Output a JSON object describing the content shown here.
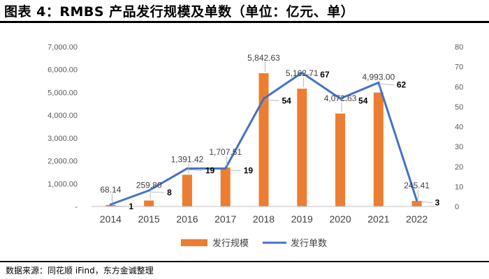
{
  "title": "图表 4：RMBS 产品发行规模及单数（单位：亿元、单）",
  "source": "数据来源：同花顺 iFind，东方金诚整理",
  "colors": {
    "bar": "#ED7D31",
    "line": "#4472C4"
  },
  "chart_data": {
    "type": "bar+line",
    "categories": [
      "2014",
      "2015",
      "2016",
      "2017",
      "2018",
      "2019",
      "2020",
      "2021",
      "2022"
    ],
    "series": [
      {
        "name": "发行规模",
        "type": "bar",
        "axis": "left",
        "values": [
          68.14,
          259.8,
          1391.42,
          1707.51,
          5842.63,
          5162.71,
          4072.63,
          4993.0,
          245.41
        ],
        "labels": [
          "68.14",
          "259.80",
          "1,391.42",
          "1,707.51",
          "5,842.63",
          "5,162.71",
          "4,072.63",
          "4,993.00",
          "245.41"
        ]
      },
      {
        "name": "发行单数",
        "type": "line",
        "axis": "right",
        "values": [
          1,
          8,
          19,
          19,
          54,
          67,
          54,
          62,
          3
        ],
        "labels": [
          "1",
          "8",
          "19",
          "19",
          "54",
          "67",
          "54",
          "62",
          "3"
        ]
      }
    ],
    "y_left": {
      "range": [
        0,
        7000
      ],
      "ticks": [
        0,
        1000,
        2000,
        3000,
        4000,
        5000,
        6000,
        7000
      ],
      "tick_labels": [
        "-",
        "1,000.00",
        "2,000.00",
        "3,000.00",
        "4,000.00",
        "5,000.00",
        "6,000.00",
        "7,000.00"
      ]
    },
    "y_right": {
      "range": [
        0,
        80
      ],
      "ticks": [
        0,
        10,
        20,
        30,
        40,
        50,
        60,
        70,
        80
      ],
      "tick_labels": [
        "0",
        "10",
        "20",
        "30",
        "40",
        "50",
        "60",
        "70",
        "80"
      ]
    },
    "legend": {
      "position": "bottom",
      "items": [
        "发行规模",
        "发行单数"
      ]
    }
  }
}
